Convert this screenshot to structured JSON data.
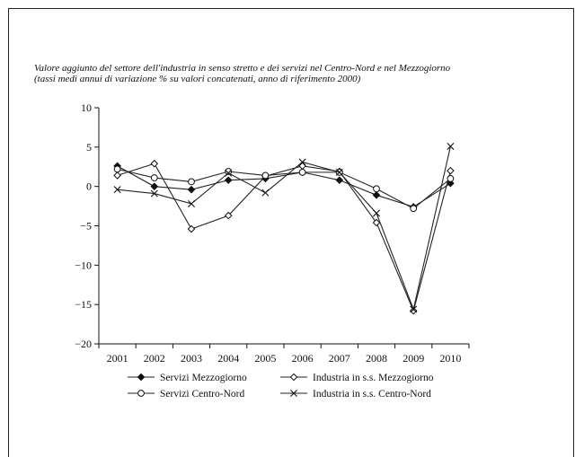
{
  "chart_data": {
    "type": "line",
    "title": "Valore aggiunto del settore dell'industria in senso stretto e dei servizi nel Centro-Nord e nel Mezzogiorno",
    "subtitle": "(tassi medi annui di variazione % su valori concatenati, anno di riferimento 2000)",
    "xlabel": "",
    "ylabel": "",
    "x": [
      "2001",
      "2002",
      "2003",
      "2004",
      "2005",
      "2006",
      "2007",
      "2008",
      "2009",
      "2010"
    ],
    "ylim": [
      -20,
      10
    ],
    "yticks": [
      10,
      5,
      0,
      -5,
      -10,
      -15,
      -20
    ],
    "grid": false,
    "legend": "bottom",
    "series": [
      {
        "name": "Servizi Mezzogiorno",
        "marker": "diamond-filled",
        "values": [
          2.6,
          0.0,
          -0.4,
          0.8,
          1.0,
          1.8,
          0.8,
          -1.1,
          -2.6,
          0.4
        ]
      },
      {
        "name": "Industria in s.s. Mezzogiorno",
        "marker": "diamond-open",
        "values": [
          1.4,
          2.9,
          -5.4,
          -3.7,
          1.3,
          2.6,
          1.9,
          -4.6,
          -15.8,
          2.0
        ]
      },
      {
        "name": "Servizi Centro-Nord",
        "marker": "circle-open",
        "values": [
          2.2,
          1.1,
          0.6,
          1.9,
          1.4,
          1.8,
          1.8,
          -0.3,
          -2.8,
          1.0
        ]
      },
      {
        "name": "Industria in s.s. Centro-Nord",
        "marker": "x",
        "values": [
          -0.4,
          -0.9,
          -2.2,
          1.7,
          -0.8,
          3.1,
          1.8,
          -3.4,
          -15.6,
          5.1
        ]
      }
    ]
  }
}
